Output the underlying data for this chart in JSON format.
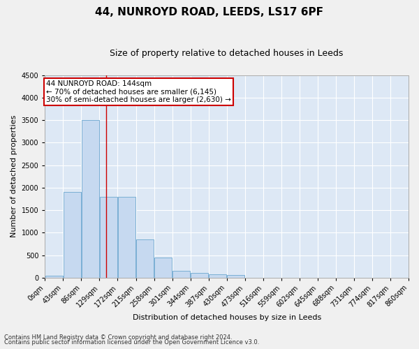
{
  "title": "44, NUNROYD ROAD, LEEDS, LS17 6PF",
  "subtitle": "Size of property relative to detached houses in Leeds",
  "xlabel": "Distribution of detached houses by size in Leeds",
  "ylabel": "Number of detached properties",
  "bin_edges": [
    0,
    43,
    86,
    129,
    172,
    215,
    258,
    301,
    344,
    387,
    430,
    473,
    516,
    559,
    602,
    645,
    688,
    731,
    774,
    817,
    860
  ],
  "bar_heights": [
    50,
    1900,
    3500,
    1800,
    1800,
    850,
    450,
    150,
    100,
    75,
    55,
    0,
    0,
    0,
    0,
    0,
    0,
    0,
    0,
    0
  ],
  "bar_color": "#c6d9f0",
  "bar_edge_color": "#7aafd4",
  "ylim": [
    0,
    4500
  ],
  "yticks": [
    0,
    500,
    1000,
    1500,
    2000,
    2500,
    3000,
    3500,
    4000,
    4500
  ],
  "vline_x": 144,
  "vline_color": "#cc0000",
  "annotation_text": "44 NUNROYD ROAD: 144sqm\n← 70% of detached houses are smaller (6,145)\n30% of semi-detached houses are larger (2,630) →",
  "annotation_box_color": "#cc0000",
  "footer_line1": "Contains HM Land Registry data © Crown copyright and database right 2024.",
  "footer_line2": "Contains public sector information licensed under the Open Government Licence v3.0.",
  "fig_bg_color": "#f0f0f0",
  "plot_bg_color": "#dde8f5",
  "grid_color": "#ffffff",
  "title_fontsize": 11,
  "subtitle_fontsize": 9,
  "tick_fontsize": 7,
  "label_fontsize": 8,
  "ann_fontsize": 7.5,
  "footer_fontsize": 6
}
